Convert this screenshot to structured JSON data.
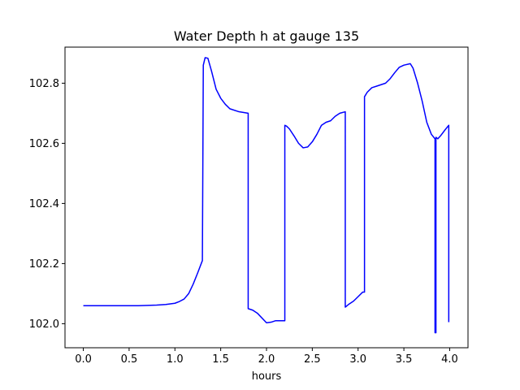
{
  "chart_data": {
    "type": "line",
    "title": "Water Depth h at gauge 135",
    "xlabel": "hours",
    "ylabel": "",
    "xlim": [
      -0.2,
      4.2
    ],
    "ylim": [
      101.92,
      102.92
    ],
    "xticks": [
      0.0,
      0.5,
      1.0,
      1.5,
      2.0,
      2.5,
      3.0,
      3.5,
      4.0
    ],
    "xtick_labels": [
      "0.0",
      "0.5",
      "1.0",
      "1.5",
      "2.0",
      "2.5",
      "3.0",
      "3.5",
      "4.0"
    ],
    "yticks": [
      102.0,
      102.2,
      102.4,
      102.6,
      102.8
    ],
    "ytick_labels": [
      "102.0",
      "102.2",
      "102.4",
      "102.6",
      "102.8"
    ],
    "grid": false,
    "legend": "none",
    "series": [
      {
        "color": "#0000ff",
        "x": [
          0.0,
          0.3,
          0.6,
          0.8,
          0.9,
          1.0,
          1.05,
          1.1,
          1.15,
          1.2,
          1.25,
          1.3,
          1.31,
          1.31,
          1.33,
          1.36,
          1.4,
          1.45,
          1.5,
          1.55,
          1.6,
          1.7,
          1.8,
          1.8,
          1.85,
          1.9,
          2.0,
          2.05,
          2.1,
          2.15,
          2.2,
          2.2,
          2.22,
          2.25,
          2.3,
          2.35,
          2.4,
          2.45,
          2.5,
          2.55,
          2.6,
          2.65,
          2.7,
          2.75,
          2.8,
          2.86,
          2.86,
          2.9,
          2.95,
          3.0,
          3.05,
          3.07,
          3.07,
          3.1,
          3.15,
          3.2,
          3.3,
          3.35,
          3.4,
          3.45,
          3.5,
          3.57,
          3.6,
          3.65,
          3.7,
          3.75,
          3.8,
          3.84,
          3.84,
          3.85,
          3.85,
          3.87,
          3.9,
          3.95,
          3.99,
          3.99
        ],
        "y": [
          102.06,
          102.06,
          102.06,
          102.062,
          102.064,
          102.068,
          102.074,
          102.082,
          102.1,
          102.132,
          102.17,
          102.21,
          102.86,
          102.86,
          102.885,
          102.883,
          102.84,
          102.78,
          102.75,
          102.73,
          102.715,
          102.705,
          102.7,
          102.05,
          102.045,
          102.035,
          102.003,
          102.005,
          102.01,
          102.01,
          102.01,
          102.66,
          102.657,
          102.648,
          102.625,
          102.6,
          102.585,
          102.588,
          102.605,
          102.63,
          102.66,
          102.67,
          102.675,
          102.69,
          102.7,
          102.705,
          102.055,
          102.065,
          102.075,
          102.09,
          102.105,
          102.105,
          102.755,
          102.77,
          102.785,
          102.79,
          102.8,
          102.815,
          102.835,
          102.853,
          102.86,
          102.865,
          102.85,
          102.8,
          102.74,
          102.67,
          102.63,
          102.615,
          101.97,
          101.97,
          102.62,
          102.615,
          102.625,
          102.645,
          102.66,
          102.005
        ]
      }
    ]
  }
}
